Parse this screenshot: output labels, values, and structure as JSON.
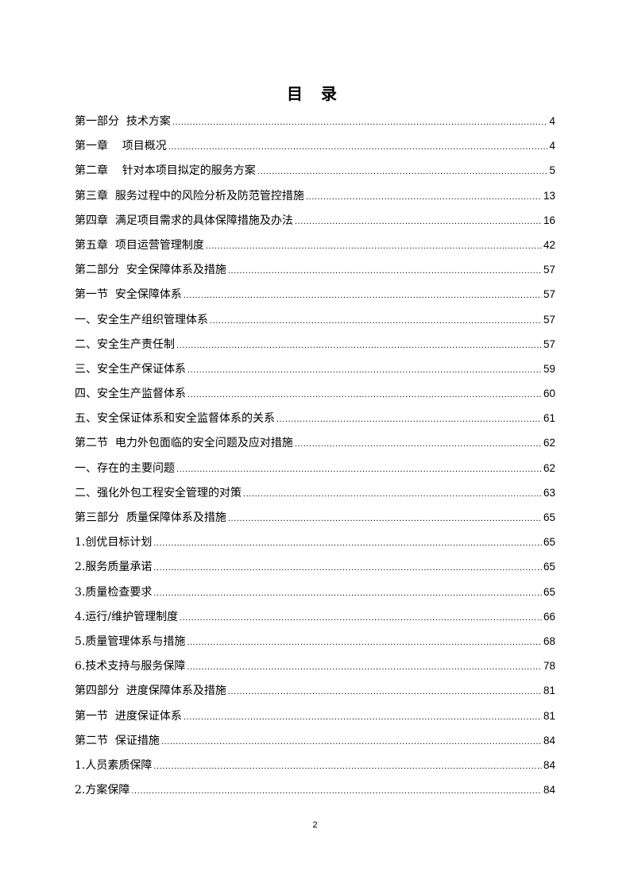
{
  "title": "目 录",
  "entries": [
    {
      "label": "第一部分  技术方案",
      "page": "4"
    },
    {
      "label": "第一章    项目概况",
      "page": "4"
    },
    {
      "label": "第二章    针对本项目拟定的服务方案",
      "page": "5"
    },
    {
      "label": "第三章  服务过程中的风险分析及防范管控措施",
      "page": "13"
    },
    {
      "label": "第四章  满足项目需求的具体保障措施及办法",
      "page": "16"
    },
    {
      "label": "第五章  项目运营管理制度",
      "page": "42"
    },
    {
      "label": "第二部分  安全保障体系及措施",
      "page": "57"
    },
    {
      "label": "第一节  安全保障体系",
      "page": "57"
    },
    {
      "label": "一、安全生产组织管理体系",
      "page": "57"
    },
    {
      "label": "二、安全生产责任制",
      "page": "57"
    },
    {
      "label": "三、安全生产保证体系",
      "page": "59"
    },
    {
      "label": "四、安全生产监督体系",
      "page": "60"
    },
    {
      "label": "五、安全保证体系和安全监督体系的关系",
      "page": "61"
    },
    {
      "label": "第二节  电力外包面临的安全问题及应对措施",
      "page": "62"
    },
    {
      "label": "一、存在的主要问题",
      "page": "62"
    },
    {
      "label": "二、强化外包工程安全管理的对策",
      "page": "63"
    },
    {
      "label": "第三部分  质量保障体系及措施",
      "page": "65"
    },
    {
      "label": "1.创优目标计划",
      "page": "65"
    },
    {
      "label": "2.服务质量承诺",
      "page": "65"
    },
    {
      "label": "3.质量检查要求",
      "page": "65"
    },
    {
      "label": "4.运行/维护管理制度",
      "page": "66"
    },
    {
      "label": "5.质量管理体系与措施",
      "page": "68"
    },
    {
      "label": "6.技术支持与服务保障",
      "page": "78"
    },
    {
      "label": "第四部分  进度保障体系及措施",
      "page": "81"
    },
    {
      "label": "第一节  进度保证体系",
      "page": "81"
    },
    {
      "label": "第二节  保证措施",
      "page": "84"
    },
    {
      "label": "1.人员素质保障",
      "page": "84"
    },
    {
      "label": "2.方案保障",
      "page": "84"
    }
  ],
  "footer": {
    "page_number": "2"
  }
}
